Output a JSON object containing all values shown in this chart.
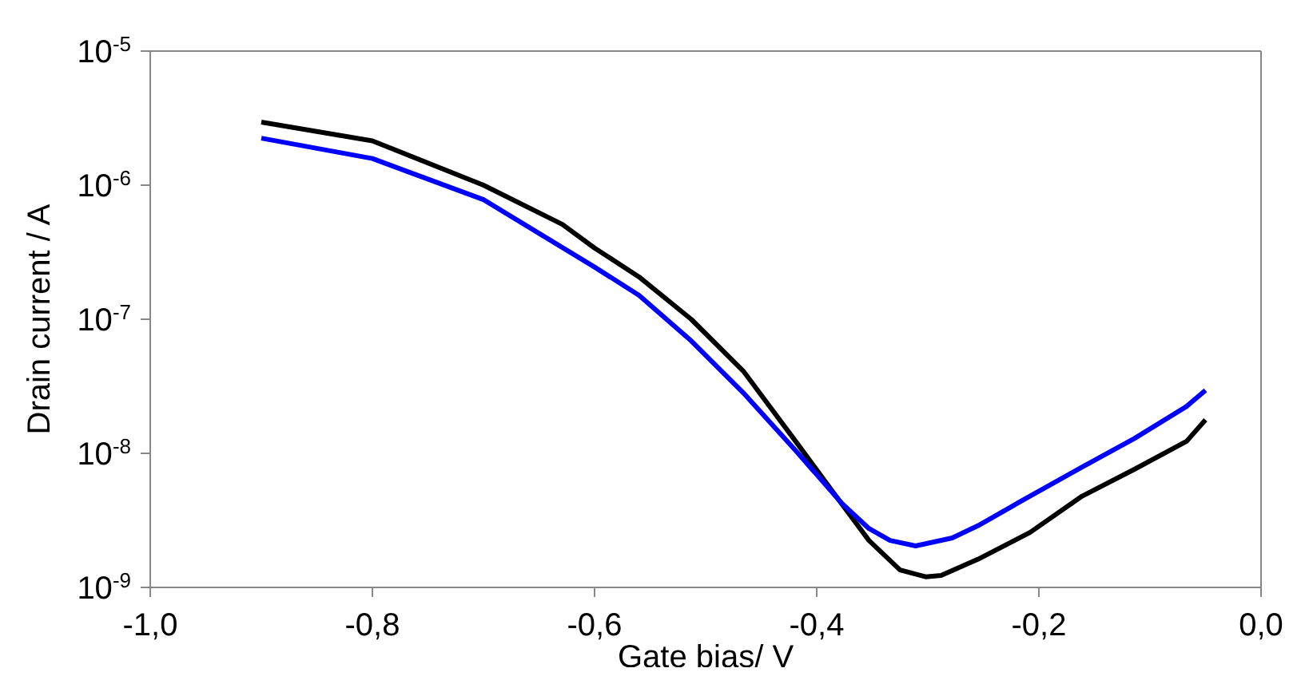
{
  "chart_data": {
    "type": "line",
    "xlabel": "Gate bias/ V",
    "ylabel": "Drain current / A",
    "log": "y",
    "xlim": [
      -1,
      0
    ],
    "xticks": [
      {
        "value": -1,
        "label": "-1,0"
      },
      {
        "value": -0.8,
        "label": "-0,8"
      },
      {
        "value": -0.6,
        "label": "-0,6"
      },
      {
        "value": -0.4,
        "label": "-0,4"
      },
      {
        "value": -0.2,
        "label": "-0,2"
      },
      {
        "value": 0,
        "label": "0,0"
      }
    ],
    "ylim": [
      1e-09,
      1e-05
    ],
    "yticks": [
      {
        "value": 1e-09,
        "label": "10$^{-9}$"
      },
      {
        "value": 1e-08,
        "label": "10$^{-8}$"
      },
      {
        "value": 1e-07,
        "label": "10$^{-7}$"
      },
      {
        "value": 1e-06,
        "label": "10$^{-6}$"
      },
      {
        "value": 1e-05,
        "label": "10$^{-5}$"
      }
    ],
    "series": [
      {
        "color": "#000000",
        "x": [
          -0.9,
          -0.8,
          -0.7,
          -0.629,
          -0.6,
          -0.56,
          -0.513,
          -0.466,
          -0.419,
          -0.381,
          -0.353,
          -0.325,
          -0.302,
          -0.288,
          -0.255,
          -0.208,
          -0.161,
          -0.114,
          -0.067,
          -0.05
        ],
        "values": [
          2.95e-06,
          2.14e-06,
          1e-06,
          5.1e-07,
          3.4e-07,
          2.07e-07,
          1e-07,
          4.1e-08,
          1.23e-08,
          4.6e-09,
          2.24e-09,
          1.35e-09,
          1.2e-09,
          1.23e-09,
          1.62e-09,
          2.57e-09,
          4.8e-09,
          7.6e-09,
          1.23e-08,
          1.78e-08
        ]
      },
      {
        "color": "#0000ff",
        "x": [
          -0.9,
          -0.8,
          -0.7,
          -0.6,
          -0.56,
          -0.513,
          -0.466,
          -0.419,
          -0.377,
          -0.353,
          -0.334,
          -0.311,
          -0.278,
          -0.255,
          -0.208,
          -0.161,
          -0.114,
          -0.067,
          -0.05
        ],
        "values": [
          2.24e-06,
          1.58e-06,
          7.8e-07,
          2.45e-07,
          1.51e-07,
          6.9e-08,
          2.82e-08,
          1.05e-08,
          4.2e-09,
          2.75e-09,
          2.24e-09,
          2.04e-09,
          2.34e-09,
          2.88e-09,
          4.8e-09,
          7.9e-09,
          1.29e-08,
          2.24e-08,
          2.95e-08
        ]
      }
    ]
  }
}
